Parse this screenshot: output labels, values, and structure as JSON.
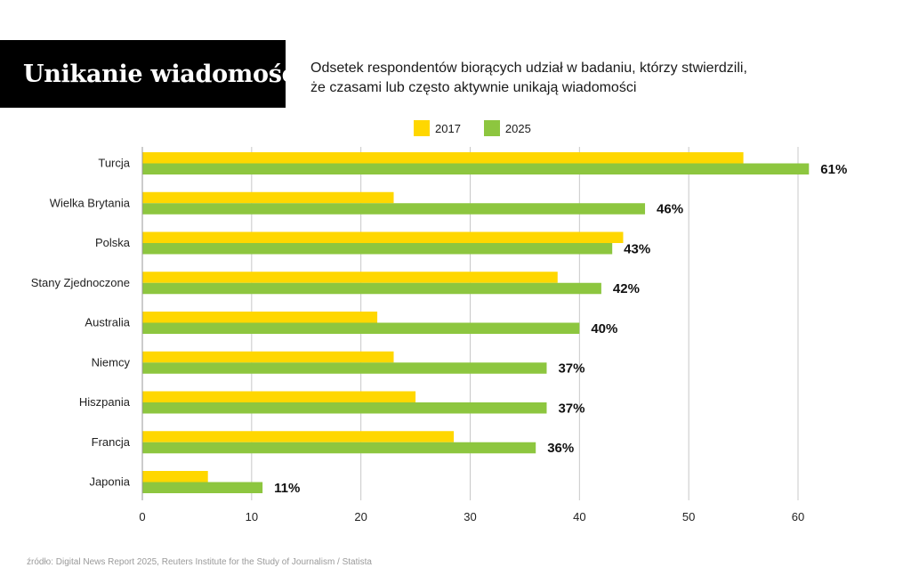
{
  "title": "Unikanie wiadomości",
  "subtitle_lines": [
    "Odsetek respondentów biorących udział w badaniu, którzy stwierdzili,",
    "że czasami lub często aktywnie unikają wiadomości"
  ],
  "source": "źródło: Digital News Report 2025, Reuters Institute for the Study of Journalism / Statista",
  "colors": {
    "s2017": "#FFD700",
    "s2025": "#8DC63F",
    "grid": "#c8c8c8"
  },
  "chart_data": {
    "type": "bar",
    "orientation": "horizontal",
    "categories": [
      "Turcja",
      "Wielka Brytania",
      "Polska",
      "Stany Zjednoczone",
      "Australia",
      "Niemcy",
      "Hiszpania",
      "Francja",
      "Japonia"
    ],
    "series": [
      {
        "name": "2017",
        "values": [
          55,
          23,
          44,
          38,
          21.5,
          23,
          25,
          28.5,
          6
        ]
      },
      {
        "name": "2025",
        "values": [
          61,
          46,
          43,
          42,
          40,
          37,
          37,
          36,
          11
        ]
      }
    ],
    "data_labels": [
      "61%",
      "46%",
      "43%",
      "42%",
      "40%",
      "37%",
      "37%",
      "36%",
      "11%"
    ],
    "xlim": [
      0,
      60
    ],
    "xticks": [
      "0",
      "10",
      "20",
      "30",
      "40",
      "50",
      "60"
    ],
    "grid": true,
    "legend": "top"
  }
}
